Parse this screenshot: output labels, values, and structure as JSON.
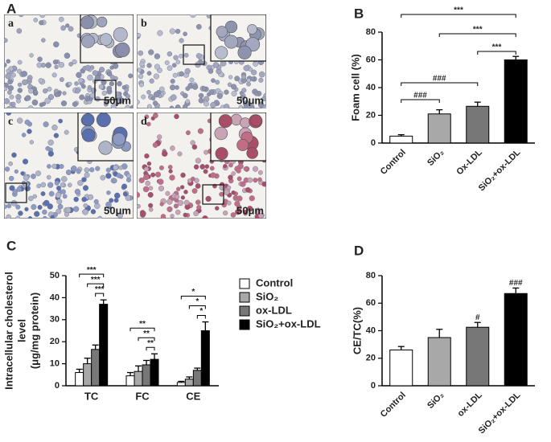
{
  "panel_a": {
    "label": "A",
    "images": [
      {
        "label": "a",
        "scale": "50μm"
      },
      {
        "label": "b",
        "scale": "50μm"
      },
      {
        "label": "c",
        "scale": "50μm"
      },
      {
        "label": "d",
        "scale": "50μm"
      }
    ]
  },
  "chart_data": [
    {
      "type": "bar",
      "panel_label": "B",
      "y_label": "Foam cell (%)",
      "categories": [
        "Control",
        "SiO₂",
        "Ox-LDL",
        "SiO₂+ox-LDL"
      ],
      "values": [
        5,
        21,
        26.5,
        60
      ],
      "errors": [
        1,
        3,
        3,
        2.5
      ],
      "colors": [
        "#ffffff",
        "#a8a8a8",
        "#777777",
        "#000000"
      ],
      "ylim": [
        0,
        80
      ],
      "yticks": [
        0,
        20,
        40,
        60,
        80
      ],
      "annotations": [
        {
          "text": "***",
          "between": [
            "Control",
            "SiO₂+ox-LDL"
          ]
        },
        {
          "text": "***",
          "between": [
            "SiO₂",
            "SiO₂+ox-LDL"
          ]
        },
        {
          "text": "***",
          "between": [
            "Ox-LDL",
            "SiO₂+ox-LDL"
          ]
        },
        {
          "text": "###",
          "between": [
            "Control",
            "Ox-LDL"
          ]
        },
        {
          "text": "###",
          "between": [
            "Control",
            "SiO₂"
          ]
        }
      ]
    },
    {
      "type": "bar",
      "panel_label": "C",
      "y_label": [
        "Intracellular cholesterol",
        "level",
        "(μg/mg protein)"
      ],
      "categories": [
        "TC",
        "FC",
        "CE"
      ],
      "series": [
        {
          "name": "Control",
          "color": "#ffffff",
          "values": [
            6,
            4.5,
            1.5
          ],
          "errors": [
            1.5,
            1.5,
            0.5
          ]
        },
        {
          "name": "SiO₂",
          "color": "#a8a8a8",
          "values": [
            10,
            6.5,
            3
          ],
          "errors": [
            2.5,
            2.5,
            1
          ]
        },
        {
          "name": "ox-LDL",
          "color": "#777777",
          "values": [
            16.5,
            9.5,
            7
          ],
          "errors": [
            2,
            2,
            1
          ]
        },
        {
          "name": "SiO₂+ox-LDL",
          "color": "#000000",
          "values": [
            37,
            12,
            25
          ],
          "errors": [
            2,
            2.5,
            4
          ]
        }
      ],
      "ylim": [
        0,
        50
      ],
      "yticks": [
        0,
        10,
        20,
        30,
        40,
        50
      ],
      "legend": "right",
      "annotations": [
        {
          "text": "***",
          "category": "TC",
          "between": [
            "Control",
            "SiO₂+ox-LDL"
          ]
        },
        {
          "text": "***",
          "category": "TC",
          "between": [
            "SiO₂",
            "SiO₂+ox-LDL"
          ]
        },
        {
          "text": "***",
          "category": "TC",
          "between": [
            "ox-LDL",
            "SiO₂+ox-LDL"
          ]
        },
        {
          "text": "**",
          "category": "FC",
          "between": [
            "Control",
            "SiO₂+ox-LDL"
          ]
        },
        {
          "text": "**",
          "category": "FC",
          "between": [
            "SiO₂",
            "SiO₂+ox-LDL"
          ]
        },
        {
          "text": "**",
          "category": "FC",
          "between": [
            "ox-LDL",
            "SiO₂+ox-LDL"
          ]
        },
        {
          "text": "*",
          "category": "CE",
          "between": [
            "Control",
            "SiO₂+ox-LDL"
          ]
        },
        {
          "text": "*",
          "category": "CE",
          "between": [
            "SiO₂",
            "SiO₂+ox-LDL"
          ]
        },
        {
          "text": "*",
          "category": "CE",
          "between": [
            "ox-LDL",
            "SiO₂+ox-LDL"
          ]
        }
      ]
    },
    {
      "type": "bar",
      "panel_label": "D",
      "y_label": "CE/TC(%)",
      "categories": [
        "Control",
        "SiO₂",
        "ox-LDL",
        "SiO₂+ox-LDL"
      ],
      "values": [
        26,
        35,
        42.5,
        67
      ],
      "errors": [
        2.5,
        6,
        3.5,
        4
      ],
      "colors": [
        "#ffffff",
        "#a8a8a8",
        "#777777",
        "#000000"
      ],
      "ylim": [
        0,
        80
      ],
      "yticks": [
        0,
        20,
        40,
        60,
        80
      ],
      "annotations": [
        {
          "text": "#",
          "category": "ox-LDL"
        },
        {
          "text": "###",
          "category": "SiO₂+ox-LDL"
        }
      ]
    }
  ]
}
